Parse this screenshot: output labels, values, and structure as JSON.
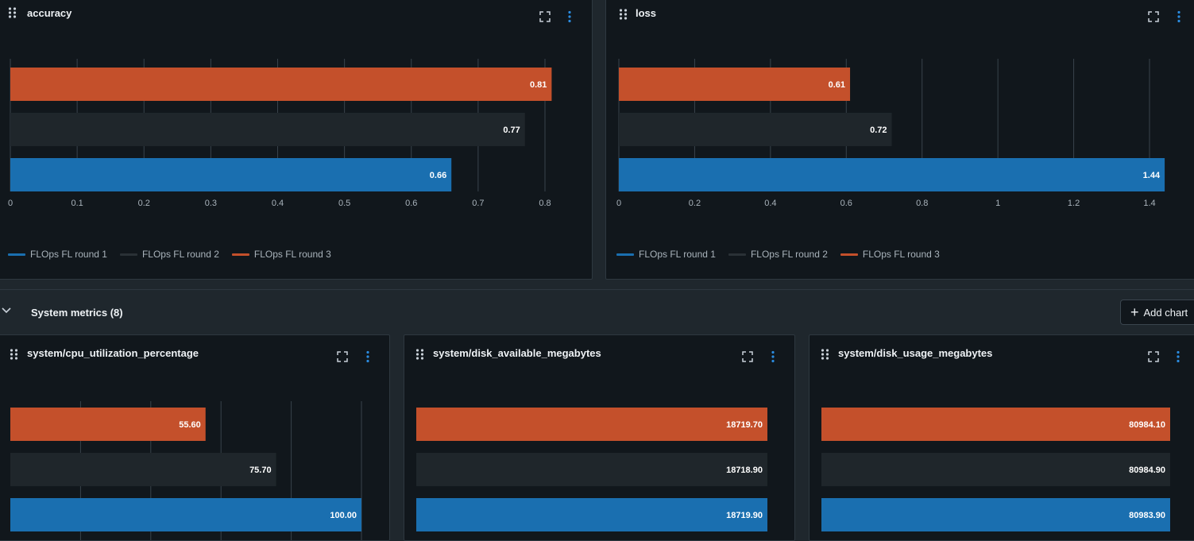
{
  "colors": {
    "round1": "#1a6fb0",
    "round2": "#1f262b",
    "round3": "#c4502b",
    "grid": "#39434b",
    "icon": "#c9d1d9",
    "menu": "#2b8ce0"
  },
  "panels": {
    "accuracy": {
      "title": "accuracy"
    },
    "loss": {
      "title": "loss"
    },
    "cpu": {
      "title": "system/cpu_utilization_percentage"
    },
    "disk_available": {
      "title": "system/disk_available_megabytes"
    },
    "disk_usage": {
      "title": "system/disk_usage_megabytes"
    }
  },
  "legend": {
    "round1": "FLOps FL round 1",
    "round2": "FLOps FL round 2",
    "round3": "FLOps FL round 3"
  },
  "section": {
    "title": "System metrics (8)",
    "add_chart_label": "Add chart"
  },
  "chart_data": [
    {
      "id": "accuracy",
      "type": "bar",
      "orientation": "horizontal",
      "title": "accuracy",
      "series_order_top_to_bottom": [
        "FLOps FL round 3",
        "FLOps FL round 2",
        "FLOps FL round 1"
      ],
      "values": [
        0.81,
        0.77,
        0.66
      ],
      "labels": [
        "0.81",
        "0.77",
        "0.66"
      ],
      "xlim": [
        0,
        0.8
      ],
      "ticks": [
        0,
        0.1,
        0.2,
        0.3,
        0.4,
        0.5,
        0.6,
        0.7,
        0.8
      ],
      "tick_labels": [
        "0",
        "0.1",
        "0.2",
        "0.3",
        "0.4",
        "0.5",
        "0.6",
        "0.7",
        "0.8"
      ]
    },
    {
      "id": "loss",
      "type": "bar",
      "orientation": "horizontal",
      "title": "loss",
      "series_order_top_to_bottom": [
        "FLOps FL round 3",
        "FLOps FL round 2",
        "FLOps FL round 1"
      ],
      "values": [
        0.61,
        0.72,
        1.44
      ],
      "labels": [
        "0.61",
        "0.72",
        "1.44"
      ],
      "xlim": [
        0,
        1.4
      ],
      "ticks": [
        0,
        0.2,
        0.4,
        0.6,
        0.8,
        1,
        1.2,
        1.4
      ],
      "tick_labels": [
        "0",
        "0.2",
        "0.4",
        "0.6",
        "0.8",
        "1",
        "1.2",
        "1.4"
      ]
    },
    {
      "id": "cpu",
      "type": "bar",
      "orientation": "horizontal",
      "title": "system/cpu_utilization_percentage",
      "series_order_top_to_bottom": [
        "FLOps FL round 3",
        "FLOps FL round 2",
        "FLOps FL round 1"
      ],
      "values": [
        55.6,
        75.7,
        100.0
      ],
      "labels": [
        "55.60",
        "75.70",
        "100.00"
      ],
      "xlim": [
        0,
        100
      ],
      "ticks": [
        20,
        40,
        60,
        80,
        100
      ],
      "tick_labels": []
    },
    {
      "id": "disk_available",
      "type": "bar",
      "orientation": "horizontal",
      "title": "system/disk_available_megabytes",
      "series_order_top_to_bottom": [
        "FLOps FL round 3",
        "FLOps FL round 2",
        "FLOps FL round 1"
      ],
      "values": [
        18719.7,
        18718.9,
        18719.9
      ],
      "labels": [
        "18719.70",
        "18718.90",
        "18719.90"
      ],
      "xlim": [
        0,
        18719.9
      ],
      "ticks": [],
      "tick_labels": []
    },
    {
      "id": "disk_usage",
      "type": "bar",
      "orientation": "horizontal",
      "title": "system/disk_usage_megabytes",
      "series_order_top_to_bottom": [
        "FLOps FL round 3",
        "FLOps FL round 2",
        "FLOps FL round 1"
      ],
      "values": [
        80984.1,
        80984.9,
        80983.9
      ],
      "labels": [
        "80984.10",
        "80984.90",
        "80983.90"
      ],
      "xlim": [
        0,
        80984.9
      ],
      "ticks": [],
      "tick_labels": []
    }
  ]
}
